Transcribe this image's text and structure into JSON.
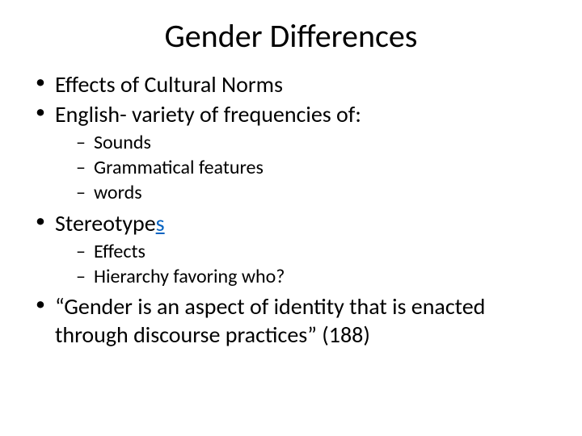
{
  "title": "Gender Differences",
  "bullets": {
    "b1": "Effects of Cultural Norms",
    "b2": "English- variety of frequencies of:",
    "b2_sub": {
      "s1": "Sounds",
      "s2": "Grammatical features",
      "s3": "words"
    },
    "b3_prefix": "Stereotype",
    "b3_link": "s",
    "b3_sub": {
      "s1": "Effects",
      "s2": "Hierarchy favoring who?"
    },
    "b4": "“Gender is an aspect of identity that is enacted through discourse practices” (188)"
  },
  "colors": {
    "background": "#ffffff",
    "text": "#000000",
    "link": "#0563c1"
  },
  "typography": {
    "title_fontsize": 40,
    "level1_fontsize": 28,
    "level2_fontsize": 24,
    "font_family": "Calibri"
  }
}
